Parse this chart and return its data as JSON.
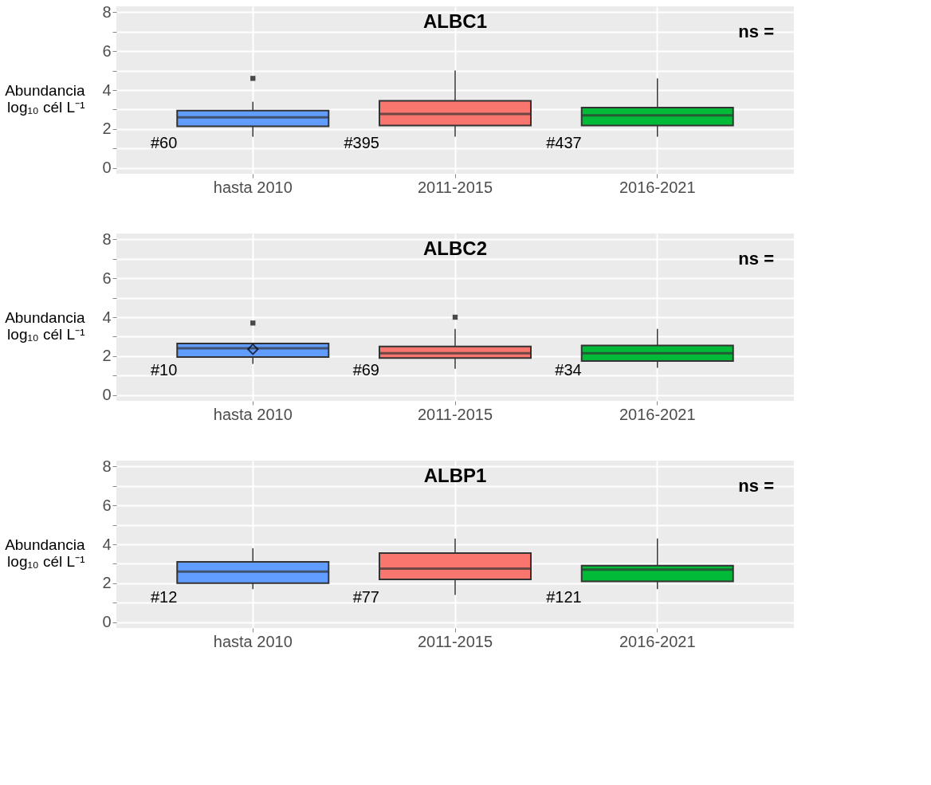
{
  "chart_data": [
    {
      "type": "box",
      "title": "ALBC1",
      "ylabel": "Abundancia\nlog₁₀ cél L⁻¹",
      "categories": [
        "hasta 2010",
        "2011-2015",
        "2016-2021"
      ],
      "colors": [
        "#619cff",
        "#f8766d",
        "#00ba38"
      ],
      "boxes": [
        {
          "low": 1.6,
          "q1": 2.14,
          "median": 2.6,
          "q3": 2.95,
          "high": 3.4,
          "outliers": [
            4.6
          ]
        },
        {
          "low": 1.6,
          "q1": 2.18,
          "median": 2.77,
          "q3": 3.45,
          "high": 5.0
        },
        {
          "low": 1.6,
          "q1": 2.18,
          "median": 2.7,
          "q3": 3.1,
          "high": 4.6
        }
      ],
      "ylim": [
        -0.3,
        8.3
      ],
      "yticks": [
        0,
        {
          "value": 1,
          "label": null
        },
        2,
        {
          "value": 3,
          "label": null
        },
        4,
        {
          "value": 5,
          "label": null
        },
        6,
        {
          "value": 7,
          "label": null
        },
        8
      ],
      "grid": true,
      "annotations": [
        "#60",
        "#395",
        "#437",
        "ns ="
      ]
    },
    {
      "type": "box",
      "title": "ALBC2",
      "ylabel": "Abundancia\nlog₁₀ cél L⁻¹",
      "categories": [
        "hasta 2010",
        "2011-2015",
        "2016-2021"
      ],
      "colors": [
        "#619cff",
        "#f8766d",
        "#00ba38"
      ],
      "boxes": [
        {
          "low": 1.6,
          "q1": 1.95,
          "median": 2.4,
          "q3": 2.65,
          "high": 2.65,
          "mean": 2.35,
          "outliers": [
            3.7
          ]
        },
        {
          "low": 1.35,
          "q1": 1.9,
          "median": 2.15,
          "q3": 2.5,
          "high": 3.4,
          "outliers": [
            4.0
          ]
        },
        {
          "low": 1.4,
          "q1": 1.75,
          "median": 2.15,
          "q3": 2.55,
          "high": 3.4
        }
      ],
      "ylim": [
        -0.3,
        8.3
      ],
      "yticks": [
        0,
        {
          "value": 1,
          "label": null
        },
        2,
        {
          "value": 3,
          "label": null
        },
        4,
        {
          "value": 5,
          "label": null
        },
        6,
        {
          "value": 7,
          "label": null
        },
        8
      ],
      "grid": true,
      "annotations": [
        "#10",
        "#69",
        "#34",
        "ns ="
      ]
    },
    {
      "type": "box",
      "title": "ALBP1",
      "ylabel": "Abundancia\nlog₁₀ cél L⁻¹",
      "categories": [
        "hasta 2010",
        "2011-2015",
        "2016-2021"
      ],
      "colors": [
        "#619cff",
        "#f8766d",
        "#00ba38"
      ],
      "boxes": [
        {
          "low": 1.7,
          "q1": 2.0,
          "median": 2.6,
          "q3": 3.1,
          "high": 3.8
        },
        {
          "low": 1.4,
          "q1": 2.2,
          "median": 2.75,
          "q3": 3.55,
          "high": 4.3
        },
        {
          "low": 1.7,
          "q1": 2.1,
          "median": 2.7,
          "q3": 2.9,
          "high": 4.3
        }
      ],
      "ylim": [
        -0.3,
        8.3
      ],
      "yticks": [
        0,
        {
          "value": 1,
          "label": null
        },
        2,
        {
          "value": 3,
          "label": null
        },
        4,
        {
          "value": 5,
          "label": null
        },
        6,
        {
          "value": 7,
          "label": null
        },
        8
      ],
      "grid": true,
      "annotations": [
        "#12",
        "#77",
        "#121",
        "ns ="
      ]
    }
  ]
}
